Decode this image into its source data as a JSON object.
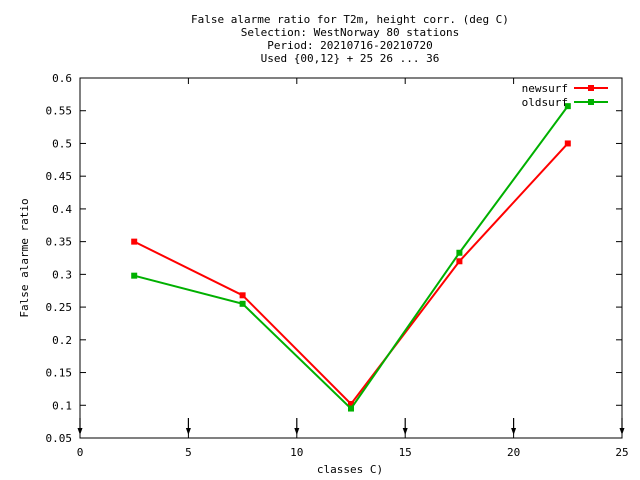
{
  "chart_data": {
    "type": "line",
    "title_lines": [
      "False alarme ratio  for T2m, height corr. (deg C)",
      "Selection: WestNorway     80 stations",
      "Period: 20210716-20210720",
      "Used {00,12} + 25 26 ... 36"
    ],
    "xlabel": "classes C)",
    "ylabel": "False alarme ratio",
    "xlim": [
      0,
      25
    ],
    "ylim": [
      0.05,
      0.6
    ],
    "xticks": [
      0,
      5,
      10,
      15,
      20,
      25
    ],
    "yticks": [
      0.05,
      0.1,
      0.15,
      0.2,
      0.25,
      0.3,
      0.35,
      0.4,
      0.45,
      0.5,
      0.55,
      0.6
    ],
    "xtick_labels": [
      "0",
      "5",
      "10",
      "15",
      "20",
      "25"
    ],
    "ytick_labels": [
      "0.05",
      "0.1",
      "0.15",
      "0.2",
      "0.25",
      "0.3",
      "0.35",
      "0.4",
      "0.45",
      "0.5",
      "0.55",
      "0.6"
    ],
    "grid": false,
    "legend_position": "top-right",
    "x": [
      2.5,
      7.5,
      12.5,
      17.5,
      22.5
    ],
    "series": [
      {
        "name": "newsurf",
        "color": "#ff0000",
        "values": [
          0.35,
          0.268,
          0.102,
          0.32,
          0.5
        ]
      },
      {
        "name": "oldsurf",
        "color": "#00b000",
        "values": [
          0.298,
          0.255,
          0.095,
          0.333,
          0.557
        ]
      }
    ]
  }
}
